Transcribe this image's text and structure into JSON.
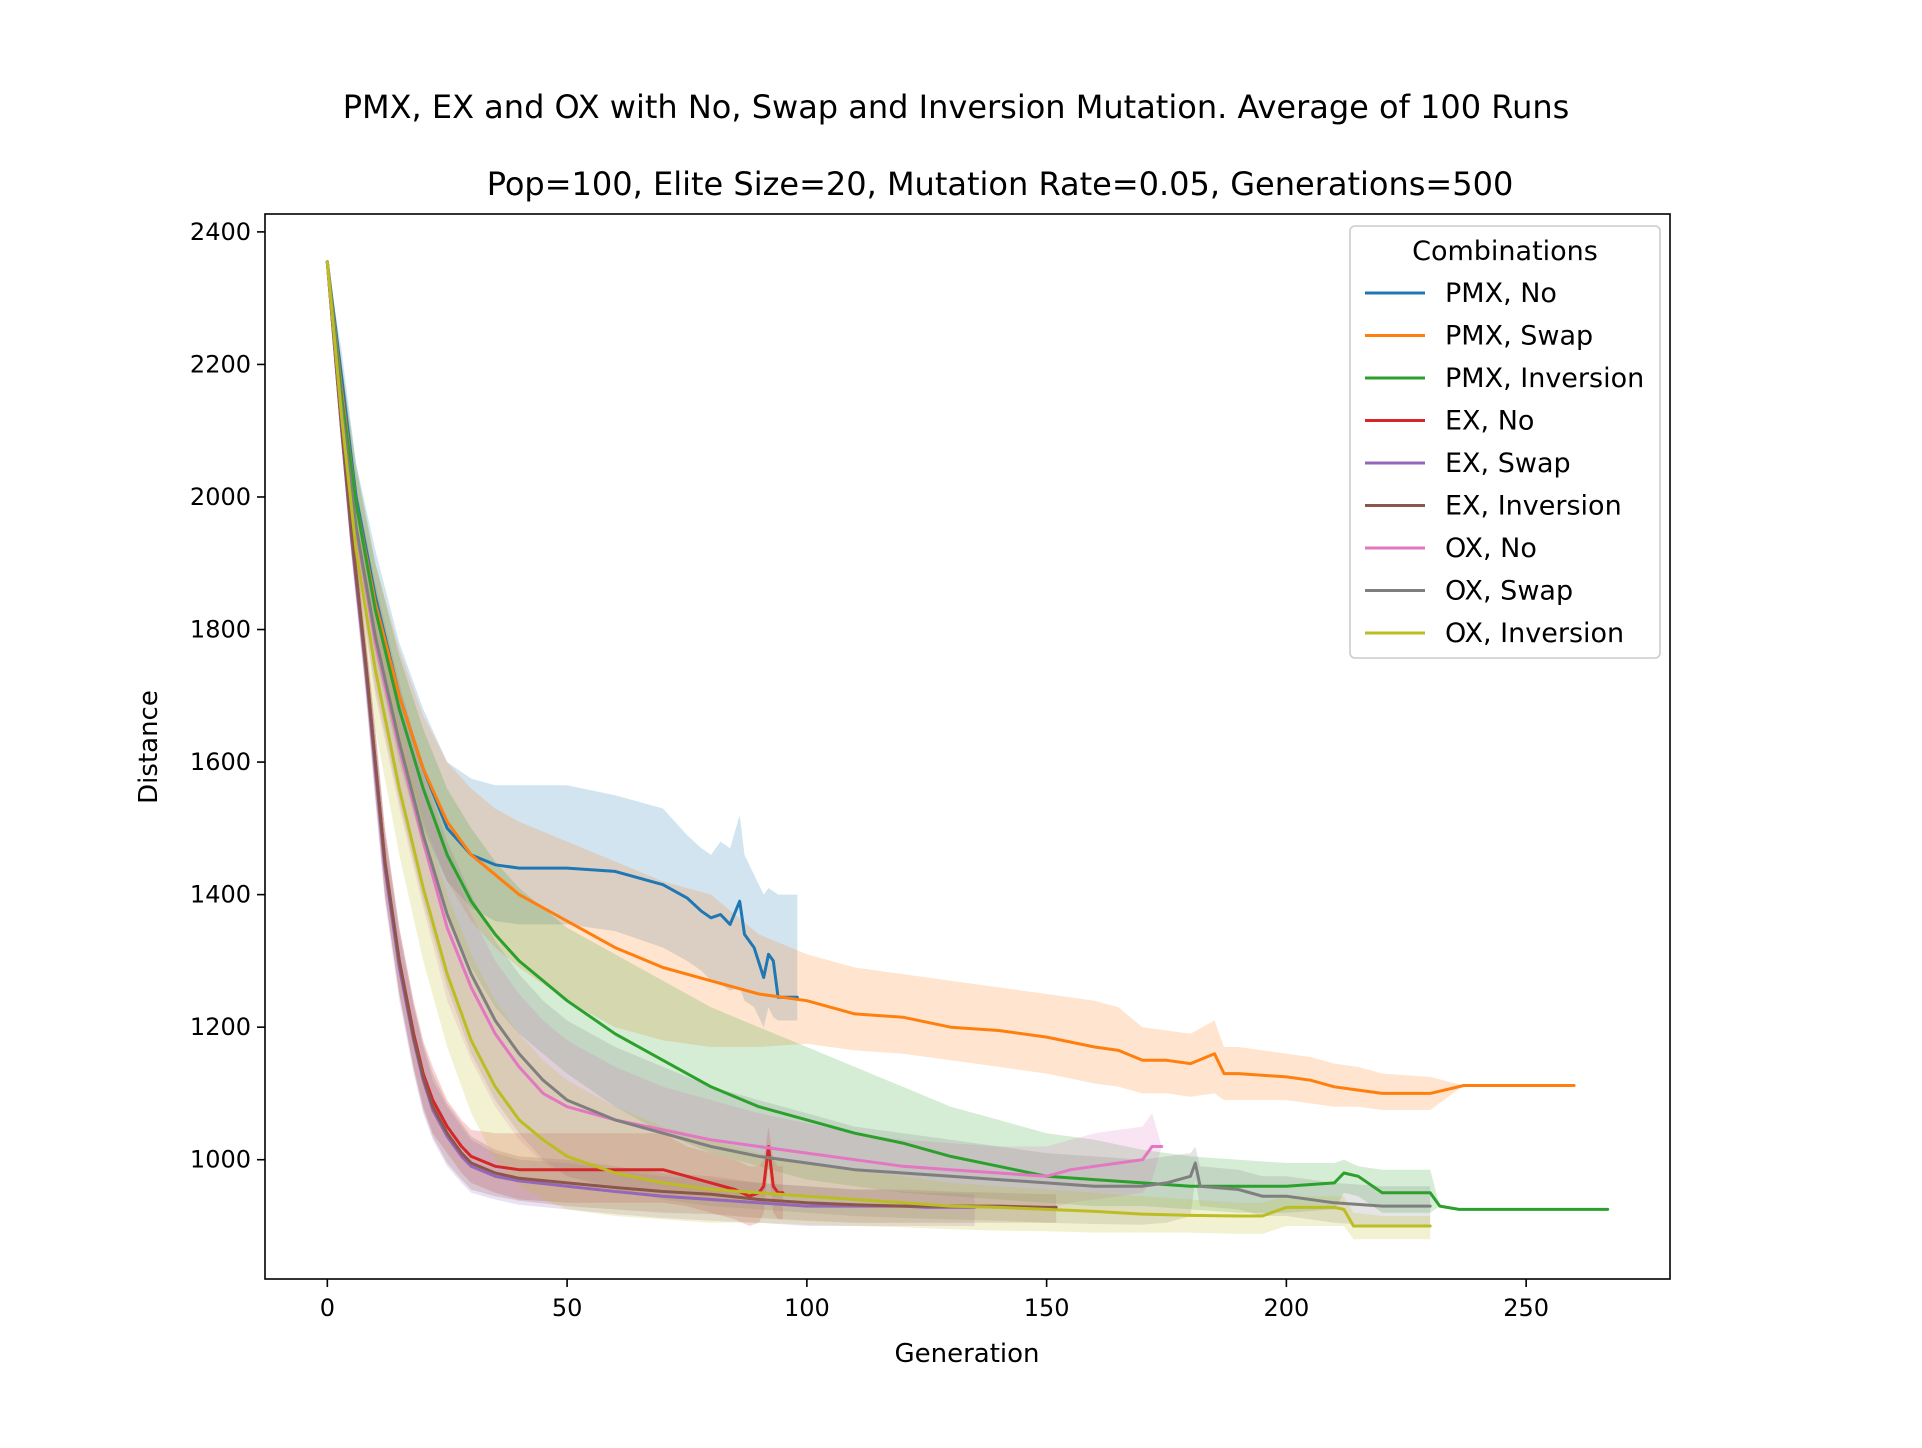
{
  "chart_data": {
    "type": "line",
    "title": "PMX, EX and OX with No, Swap and Inversion Mutation. Average of 100 Runs",
    "subtitle": "Pop=100, Elite Size=20, Mutation Rate=0.05, Generations=500",
    "xlabel": "Generation",
    "ylabel": "Distance",
    "xlim": [
      -13,
      280
    ],
    "ylim": [
      820,
      2427
    ],
    "xticks": [
      0,
      50,
      100,
      150,
      200,
      250
    ],
    "yticks": [
      1000,
      1200,
      1400,
      1600,
      1800,
      2000,
      2200,
      2400
    ],
    "grid": false,
    "legend": {
      "title": "Combinations",
      "position": "top-right"
    },
    "series": [
      {
        "name": "PMX, No",
        "color": "#1f77b4",
        "x": [
          0,
          3,
          6,
          10,
          15,
          20,
          25,
          30,
          35,
          40,
          50,
          60,
          70,
          75,
          78,
          80,
          82,
          84,
          86,
          87,
          89,
          91,
          92,
          93,
          94,
          96,
          98
        ],
        "y": [
          2355,
          2180,
          2000,
          1850,
          1700,
          1590,
          1500,
          1460,
          1445,
          1440,
          1440,
          1435,
          1415,
          1395,
          1375,
          1365,
          1370,
          1355,
          1390,
          1340,
          1320,
          1275,
          1310,
          1300,
          1245,
          1245,
          1245
        ],
        "band_upper": [
          2355,
          2220,
          2050,
          1920,
          1780,
          1680,
          1600,
          1575,
          1565,
          1565,
          1565,
          1550,
          1530,
          1490,
          1470,
          1460,
          1480,
          1470,
          1520,
          1460,
          1430,
          1400,
          1410,
          1405,
          1400,
          1400,
          1400
        ],
        "band_lower": [
          2355,
          2140,
          1950,
          1780,
          1620,
          1500,
          1420,
          1380,
          1360,
          1355,
          1355,
          1345,
          1320,
          1300,
          1285,
          1270,
          1265,
          1255,
          1260,
          1240,
          1230,
          1200,
          1230,
          1215,
          1210,
          1210,
          1210
        ]
      },
      {
        "name": "PMX, Swap",
        "color": "#ff7f0e",
        "x": [
          0,
          3,
          6,
          10,
          15,
          20,
          25,
          30,
          35,
          40,
          50,
          60,
          70,
          80,
          90,
          100,
          110,
          120,
          130,
          140,
          150,
          160,
          165,
          170,
          175,
          180,
          185,
          187,
          190,
          200,
          205,
          210,
          215,
          220,
          230,
          237,
          240,
          250,
          260
        ],
        "y": [
          2355,
          2160,
          1990,
          1840,
          1700,
          1590,
          1510,
          1460,
          1430,
          1400,
          1360,
          1320,
          1290,
          1270,
          1250,
          1240,
          1220,
          1215,
          1200,
          1195,
          1185,
          1170,
          1165,
          1150,
          1150,
          1145,
          1160,
          1130,
          1130,
          1125,
          1120,
          1110,
          1105,
          1100,
          1100,
          1112,
          1112,
          1112,
          1112
        ],
        "band_upper": [
          2355,
          2200,
          2040,
          1900,
          1770,
          1670,
          1600,
          1560,
          1530,
          1510,
          1480,
          1450,
          1420,
          1400,
          1340,
          1310,
          1290,
          1280,
          1270,
          1260,
          1250,
          1240,
          1230,
          1200,
          1195,
          1190,
          1210,
          1170,
          1170,
          1160,
          1155,
          1145,
          1140,
          1130,
          1125,
          1112,
          1112,
          1112,
          1112
        ],
        "band_lower": [
          2355,
          2120,
          1940,
          1780,
          1630,
          1510,
          1420,
          1360,
          1320,
          1290,
          1240,
          1200,
          1180,
          1170,
          1170,
          1175,
          1165,
          1160,
          1150,
          1140,
          1130,
          1115,
          1110,
          1100,
          1100,
          1095,
          1100,
          1090,
          1090,
          1090,
          1085,
          1080,
          1080,
          1075,
          1075,
          1112,
          1112,
          1112,
          1112
        ]
      },
      {
        "name": "PMX, Inversion",
        "color": "#2ca02c",
        "x": [
          0,
          3,
          6,
          10,
          15,
          20,
          25,
          30,
          35,
          40,
          50,
          60,
          70,
          80,
          90,
          100,
          110,
          120,
          130,
          140,
          150,
          160,
          170,
          180,
          190,
          200,
          210,
          212,
          215,
          220,
          230,
          232,
          236,
          240,
          250,
          260,
          267
        ],
        "y": [
          2355,
          2150,
          1990,
          1830,
          1680,
          1560,
          1460,
          1390,
          1340,
          1300,
          1240,
          1190,
          1150,
          1110,
          1080,
          1060,
          1040,
          1025,
          1005,
          990,
          975,
          970,
          965,
          960,
          960,
          960,
          965,
          980,
          975,
          950,
          950,
          930,
          925,
          925,
          925,
          925,
          925
        ],
        "band_upper": [
          2355,
          2200,
          2050,
          1900,
          1760,
          1650,
          1560,
          1500,
          1450,
          1410,
          1350,
          1310,
          1270,
          1230,
          1200,
          1170,
          1140,
          1110,
          1080,
          1060,
          1040,
          1030,
          1015,
          1005,
          1000,
          995,
          995,
          1000,
          990,
          985,
          985,
          930,
          925,
          925,
          925,
          925,
          925
        ],
        "band_lower": [
          2355,
          2100,
          1930,
          1760,
          1600,
          1470,
          1370,
          1290,
          1230,
          1190,
          1130,
          1080,
          1040,
          1010,
          990,
          970,
          960,
          950,
          945,
          940,
          935,
          930,
          930,
          925,
          920,
          920,
          925,
          950,
          945,
          920,
          920,
          930,
          925,
          925,
          925,
          925,
          925
        ]
      },
      {
        "name": "EX, No",
        "color": "#d62728",
        "x": [
          0,
          3,
          5,
          8,
          10,
          12,
          15,
          18,
          20,
          22,
          25,
          28,
          30,
          35,
          40,
          50,
          60,
          70,
          75,
          80,
          85,
          88,
          90,
          91,
          92,
          93,
          94,
          95
        ],
        "y": [
          2355,
          2100,
          1950,
          1750,
          1600,
          1450,
          1300,
          1190,
          1130,
          1090,
          1050,
          1020,
          1005,
          990,
          985,
          985,
          985,
          985,
          975,
          965,
          955,
          945,
          950,
          960,
          1020,
          960,
          950,
          950
        ],
        "band_upper": [
          2355,
          2120,
          1980,
          1790,
          1650,
          1500,
          1350,
          1240,
          1180,
          1140,
          1090,
          1060,
          1045,
          1040,
          1040,
          1040,
          1040,
          1040,
          1020,
          1010,
          1000,
          990,
          990,
          1000,
          1050,
          1000,
          990,
          990
        ],
        "band_lower": [
          2355,
          2080,
          1920,
          1710,
          1550,
          1400,
          1250,
          1140,
          1080,
          1040,
          1010,
          980,
          965,
          950,
          940,
          935,
          935,
          935,
          930,
          920,
          910,
          900,
          905,
          920,
          990,
          920,
          910,
          910
        ]
      },
      {
        "name": "EX, Swap",
        "color": "#9467bd",
        "x": [
          0,
          3,
          5,
          8,
          10,
          12,
          15,
          18,
          20,
          22,
          25,
          28,
          30,
          35,
          40,
          50,
          60,
          70,
          80,
          90,
          100,
          110,
          115,
          120,
          125,
          130,
          135
        ],
        "y": [
          2355,
          2100,
          1940,
          1740,
          1590,
          1440,
          1290,
          1180,
          1120,
          1075,
          1035,
          1005,
          990,
          975,
          968,
          960,
          952,
          945,
          940,
          935,
          930,
          930,
          930,
          930,
          928,
          928,
          928
        ],
        "band_upper": [
          2355,
          2120,
          1970,
          1780,
          1640,
          1490,
          1340,
          1230,
          1170,
          1120,
          1080,
          1050,
          1030,
          1010,
          1000,
          995,
          985,
          975,
          970,
          965,
          960,
          955,
          955,
          952,
          950,
          950,
          948
        ],
        "band_lower": [
          2355,
          2080,
          1910,
          1700,
          1540,
          1390,
          1240,
          1130,
          1070,
          1030,
          990,
          965,
          950,
          940,
          932,
          925,
          918,
          912,
          908,
          905,
          900,
          900,
          900,
          900,
          900,
          900,
          900
        ]
      },
      {
        "name": "EX, Inversion",
        "color": "#8c564b",
        "x": [
          0,
          3,
          5,
          8,
          10,
          12,
          15,
          18,
          20,
          22,
          25,
          28,
          30,
          35,
          40,
          50,
          60,
          70,
          80,
          90,
          100,
          110,
          120,
          130,
          140,
          150,
          152
        ],
        "y": [
          2355,
          2105,
          1950,
          1750,
          1600,
          1450,
          1300,
          1185,
          1125,
          1080,
          1040,
          1010,
          995,
          980,
          972,
          965,
          958,
          952,
          948,
          940,
          935,
          932,
          930,
          930,
          930,
          928,
          928
        ],
        "band_upper": [
          2355,
          2125,
          1980,
          1790,
          1650,
          1500,
          1350,
          1235,
          1175,
          1130,
          1085,
          1055,
          1035,
          1015,
          1005,
          1000,
          990,
          980,
          975,
          965,
          960,
          955,
          955,
          952,
          950,
          948,
          948
        ],
        "band_lower": [
          2355,
          2085,
          1920,
          1710,
          1550,
          1400,
          1250,
          1135,
          1075,
          1035,
          995,
          970,
          955,
          945,
          938,
          930,
          925,
          920,
          918,
          912,
          908,
          905,
          905,
          905,
          905,
          905,
          905
        ]
      },
      {
        "name": "OX, No",
        "color": "#e377c2",
        "x": [
          0,
          3,
          6,
          10,
          15,
          20,
          25,
          30,
          35,
          40,
          45,
          50,
          60,
          70,
          80,
          90,
          100,
          110,
          120,
          130,
          140,
          150,
          155,
          160,
          165,
          170,
          172,
          174
        ],
        "y": [
          2355,
          2130,
          1950,
          1780,
          1620,
          1480,
          1350,
          1260,
          1190,
          1140,
          1100,
          1080,
          1060,
          1045,
          1030,
          1020,
          1010,
          1000,
          990,
          985,
          980,
          975,
          985,
          990,
          995,
          1000,
          1020,
          1020
        ],
        "band_upper": [
          2355,
          2180,
          2010,
          1860,
          1710,
          1580,
          1460,
          1370,
          1300,
          1250,
          1210,
          1180,
          1140,
          1110,
          1090,
          1070,
          1055,
          1040,
          1030,
          1025,
          1020,
          1020,
          1030,
          1040,
          1045,
          1050,
          1070,
          1020
        ],
        "band_lower": [
          2355,
          2080,
          1890,
          1700,
          1530,
          1380,
          1240,
          1150,
          1080,
          1030,
          995,
          975,
          960,
          955,
          950,
          945,
          945,
          940,
          935,
          930,
          930,
          925,
          935,
          940,
          945,
          950,
          970,
          1020
        ]
      },
      {
        "name": "OX, Swap",
        "color": "#7f7f7f",
        "x": [
          0,
          3,
          6,
          10,
          15,
          20,
          25,
          30,
          35,
          40,
          45,
          50,
          60,
          70,
          80,
          90,
          100,
          110,
          120,
          130,
          140,
          150,
          160,
          170,
          175,
          180,
          181,
          182,
          190,
          195,
          200,
          210,
          220,
          230
        ],
        "y": [
          2355,
          2135,
          1955,
          1790,
          1630,
          1490,
          1370,
          1280,
          1210,
          1160,
          1120,
          1090,
          1060,
          1040,
          1020,
          1005,
          995,
          985,
          980,
          975,
          970,
          965,
          960,
          960,
          965,
          975,
          995,
          960,
          955,
          945,
          945,
          935,
          930,
          930
        ],
        "band_upper": [
          2355,
          2185,
          2015,
          1870,
          1720,
          1590,
          1480,
          1400,
          1330,
          1280,
          1240,
          1210,
          1170,
          1140,
          1110,
          1090,
          1070,
          1050,
          1040,
          1030,
          1020,
          1010,
          1005,
          1000,
          1005,
          1010,
          1020,
          990,
          985,
          975,
          975,
          965,
          960,
          960
        ],
        "band_lower": [
          2355,
          2085,
          1895,
          1710,
          1540,
          1390,
          1260,
          1160,
          1090,
          1040,
          1000,
          975,
          955,
          940,
          930,
          925,
          920,
          915,
          912,
          910,
          908,
          905,
          903,
          902,
          905,
          915,
          970,
          930,
          925,
          915,
          915,
          905,
          900,
          900
        ]
      },
      {
        "name": "OX, Inversion",
        "color": "#bcbd22",
        "x": [
          0,
          3,
          6,
          10,
          15,
          20,
          25,
          30,
          35,
          40,
          45,
          50,
          60,
          70,
          80,
          90,
          100,
          110,
          120,
          130,
          140,
          150,
          160,
          170,
          180,
          190,
          195,
          200,
          210,
          212,
          214,
          220,
          230
        ],
        "y": [
          2355,
          2120,
          1920,
          1740,
          1560,
          1410,
          1280,
          1180,
          1110,
          1060,
          1030,
          1005,
          980,
          965,
          955,
          950,
          945,
          940,
          935,
          930,
          928,
          925,
          922,
          918,
          916,
          915,
          915,
          928,
          928,
          925,
          900,
          900,
          900
        ],
        "band_upper": [
          2355,
          2170,
          1990,
          1820,
          1660,
          1520,
          1400,
          1310,
          1240,
          1190,
          1150,
          1120,
          1080,
          1050,
          1030,
          1010,
          995,
          985,
          975,
          965,
          960,
          955,
          950,
          945,
          940,
          935,
          935,
          945,
          945,
          945,
          920,
          915,
          915
        ],
        "band_lower": [
          2355,
          2070,
          1850,
          1650,
          1460,
          1300,
          1170,
          1070,
          1000,
          960,
          940,
          925,
          915,
          910,
          905,
          905,
          902,
          900,
          898,
          895,
          893,
          892,
          890,
          890,
          890,
          888,
          888,
          900,
          900,
          900,
          880,
          880,
          880
        ]
      }
    ]
  }
}
